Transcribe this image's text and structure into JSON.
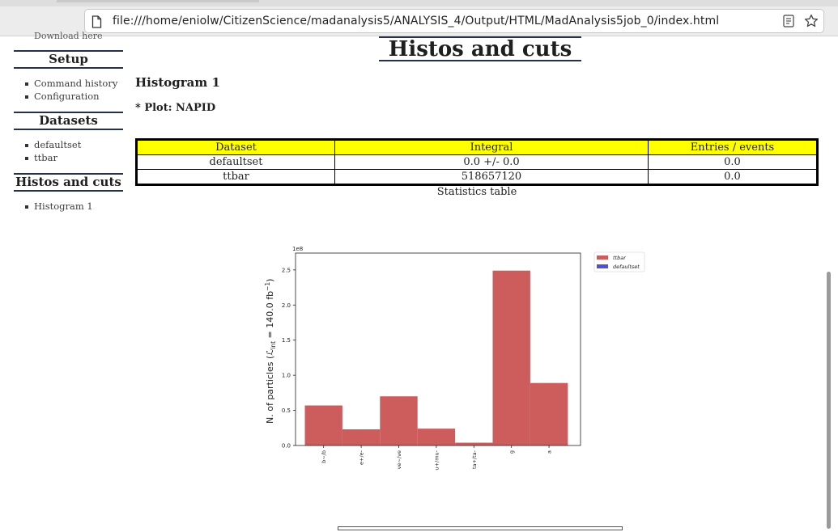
{
  "browser": {
    "url": "file:///home/eniolw/CitizenScience/madanalysis5/ANALYSIS_4/Output/HTML/MadAnalysis5job_0/index.html"
  },
  "sidebar": {
    "cut_link": "Download here",
    "sections": [
      {
        "title": "Setup",
        "items": [
          "Command history",
          "Configuration"
        ]
      },
      {
        "title": "Datasets",
        "items": [
          "defaultset",
          "ttbar"
        ]
      },
      {
        "title": "Histos and cuts",
        "items": [
          "Histogram 1"
        ]
      }
    ]
  },
  "main": {
    "title": "Histos and cuts",
    "histogram_title": "Histogram 1",
    "plot_label": "* Plot: NAPID",
    "table": {
      "headers": [
        "Dataset",
        "Integral",
        "Entries / events"
      ],
      "rows": [
        [
          "defaultset",
          "0.0 +/- 0.0",
          "0.0"
        ],
        [
          "ttbar",
          "518657120",
          "0.0"
        ]
      ],
      "caption": "Statistics table"
    }
  },
  "colors": {
    "table_header": "#ffff00",
    "ttbar": "#cd5c5c",
    "defaultset": "#5050d0",
    "heading_rule": "#233249"
  },
  "chart_data": {
    "type": "bar",
    "categories": [
      "b~/b",
      "e+/e-",
      "ve~/ve",
      "u+/mu-",
      "ta+/ta-",
      "g",
      "a"
    ],
    "series": [
      {
        "name": "ttbar",
        "values": [
          57000000.0,
          23000000.0,
          70000000.0,
          24000000.0,
          4000000.0,
          249000000.0,
          89000000.0
        ]
      },
      {
        "name": "defaultset",
        "values": [
          0,
          0,
          0,
          0,
          0,
          0,
          0
        ]
      }
    ],
    "ylabel": "N. of particles ($\\mathcal{L}_{\\rm int}$ = 140.0 fb$^{-1}$)",
    "ylabel_display": "N. of particles (ℒ",
    "ylabel_sub": "int",
    "ylabel_tail": " = 140.0 fb",
    "ylabel_sup": "−1",
    "ylabel_close": ")",
    "yticks": [
      "0.0",
      "0.5",
      "1.0",
      "1.5",
      "2.0",
      "2.5"
    ],
    "ytick_values": [
      0,
      50000000.0,
      100000000.0,
      150000000.0,
      200000000.0,
      250000000.0
    ],
    "offset_label": "1e8",
    "ylim": [
      0,
      274000000.0
    ],
    "legend_placement": "outside top-right",
    "grid": false
  }
}
